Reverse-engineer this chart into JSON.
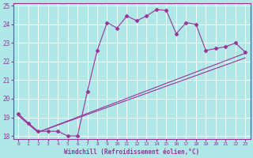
{
  "background_color": "#b0e8e8",
  "grid_color": "#ffffff",
  "line_color": "#993399",
  "xlabel": "Windchill (Refroidissement éolien,°C)",
  "xlim_min": -0.5,
  "xlim_max": 23.5,
  "ylim_min": 17.85,
  "ylim_max": 25.15,
  "yticks": [
    18,
    19,
    20,
    21,
    22,
    23,
    24,
    25
  ],
  "xtick_labels": [
    "0",
    "1",
    "2",
    "3",
    "4",
    "5",
    "6",
    "7",
    "8",
    "9",
    "10",
    "11",
    "12",
    "13",
    "14",
    "15",
    "16",
    "17",
    "18",
    "19",
    "20",
    "21",
    "22",
    "23"
  ],
  "series1_x": [
    0,
    1,
    2,
    3,
    4,
    5,
    6,
    7,
    8,
    9,
    10,
    11,
    12,
    13,
    14,
    15,
    16,
    17,
    18,
    19,
    20,
    21,
    22,
    23
  ],
  "series1_y": [
    19.2,
    18.7,
    18.25,
    18.25,
    18.25,
    18.0,
    18.0,
    20.4,
    22.6,
    24.1,
    23.8,
    24.45,
    24.2,
    24.45,
    24.8,
    24.75,
    23.5,
    24.1,
    24.0,
    22.6,
    22.7,
    22.8,
    23.0,
    22.5
  ],
  "series2_x": [
    0,
    2,
    23
  ],
  "series2_y": [
    19.1,
    18.2,
    22.45
  ],
  "series3_x": [
    0,
    2,
    23
  ],
  "series3_y": [
    19.1,
    18.2,
    22.2
  ]
}
